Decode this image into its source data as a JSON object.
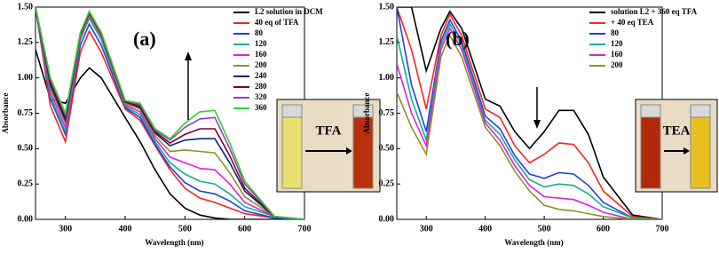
{
  "chart_data": [
    {
      "type": "line",
      "label": "(a)",
      "inset_label": "TFA",
      "x_label": "Wavelength (nm)",
      "y_label": "Absorbance",
      "x": [
        250,
        275,
        300,
        325,
        340,
        360,
        400,
        425,
        450,
        475,
        500,
        525,
        550,
        575,
        600,
        650,
        700
      ],
      "xlim": [
        250,
        700
      ],
      "xticks": [
        300,
        400,
        500,
        600,
        700
      ],
      "ylim": [
        0,
        1.5
      ],
      "yticks": [
        {
          "value": 0,
          "label": "0.00"
        },
        {
          "value": 0.25,
          "label": "0.25"
        },
        {
          "value": 0.5,
          "label": "0.50"
        },
        {
          "value": 0.75,
          "label": "0.75"
        },
        {
          "value": 1,
          "label": "1.00"
        },
        {
          "value": 1.25,
          "label": "1.25"
        },
        {
          "value": 1.5,
          "label": "1.50"
        }
      ],
      "legend": "upper right",
      "series": [
        {
          "name": "L2 solution in DCM",
          "color": "#000000",
          "values": [
            1.2,
            0.85,
            0.82,
            1.0,
            1.07,
            1.0,
            0.72,
            0.55,
            0.35,
            0.18,
            0.08,
            0.03,
            0.01,
            0,
            0,
            0,
            0
          ]
        },
        {
          "name": "40 eq of TFA",
          "color": "#ff2020",
          "values": [
            1.5,
            0.8,
            0.55,
            1.18,
            1.33,
            1.18,
            0.78,
            0.7,
            0.52,
            0.35,
            0.22,
            0.15,
            0.12,
            0.08,
            0.04,
            0.01,
            0
          ]
        },
        {
          "name": "80",
          "color": "#2040e0",
          "values": [
            1.5,
            0.85,
            0.6,
            1.23,
            1.38,
            1.23,
            0.79,
            0.72,
            0.53,
            0.37,
            0.26,
            0.2,
            0.18,
            0.13,
            0.06,
            0.01,
            0
          ]
        },
        {
          "name": "120",
          "color": "#10b090",
          "values": [
            1.5,
            0.87,
            0.62,
            1.27,
            1.42,
            1.27,
            0.8,
            0.74,
            0.55,
            0.4,
            0.32,
            0.27,
            0.25,
            0.18,
            0.09,
            0.02,
            0
          ]
        },
        {
          "name": "160",
          "color": "#e020e0",
          "values": [
            1.5,
            0.9,
            0.65,
            1.29,
            1.44,
            1.29,
            0.81,
            0.76,
            0.57,
            0.44,
            0.4,
            0.36,
            0.35,
            0.25,
            0.12,
            0.02,
            0
          ]
        },
        {
          "name": "200",
          "color": "#909020",
          "values": [
            1.5,
            0.93,
            0.68,
            1.3,
            1.45,
            1.3,
            0.82,
            0.78,
            0.59,
            0.48,
            0.49,
            0.48,
            0.47,
            0.33,
            0.16,
            0.02,
            0
          ]
        },
        {
          "name": "240",
          "color": "#102080",
          "values": [
            1.5,
            0.95,
            0.7,
            1.31,
            1.46,
            1.31,
            0.83,
            0.79,
            0.61,
            0.52,
            0.56,
            0.57,
            0.57,
            0.4,
            0.2,
            0.02,
            0
          ]
        },
        {
          "name": "280",
          "color": "#800020",
          "values": [
            1.5,
            0.97,
            0.72,
            1.31,
            1.46,
            1.31,
            0.83,
            0.8,
            0.62,
            0.54,
            0.6,
            0.64,
            0.64,
            0.45,
            0.22,
            0.02,
            0
          ]
        },
        {
          "name": "320",
          "color": "#9040c0",
          "values": [
            1.5,
            0.99,
            0.74,
            1.32,
            1.47,
            1.32,
            0.84,
            0.81,
            0.63,
            0.56,
            0.65,
            0.71,
            0.72,
            0.5,
            0.25,
            0.02,
            0
          ]
        },
        {
          "name": "360",
          "color": "#30d030",
          "values": [
            1.5,
            1.0,
            0.75,
            1.32,
            1.47,
            1.32,
            0.84,
            0.82,
            0.64,
            0.57,
            0.68,
            0.76,
            0.77,
            0.54,
            0.27,
            0.02,
            0
          ]
        }
      ]
    },
    {
      "type": "line",
      "label": "(b)",
      "inset_label": "TEA",
      "x_label": "Wavelength (nm)",
      "y_label": "Absorbance",
      "x": [
        250,
        275,
        300,
        325,
        340,
        360,
        400,
        425,
        450,
        475,
        500,
        525,
        550,
        575,
        600,
        650,
        700
      ],
      "xlim": [
        250,
        700
      ],
      "xticks": [
        300,
        400,
        500,
        600,
        700
      ],
      "ylim": [
        0,
        1.5
      ],
      "yticks": [
        {
          "value": 0,
          "label": "0.00"
        },
        {
          "value": 0.25,
          "label": "0.25"
        },
        {
          "value": 0.5,
          "label": "0.50"
        },
        {
          "value": 0.75,
          "label": "0.75"
        },
        {
          "value": 1,
          "label": "1.00"
        },
        {
          "value": 1.25,
          "label": "1.25"
        },
        {
          "value": 1.5,
          "label": "1.50"
        }
      ],
      "legend": "upper right",
      "series": [
        {
          "name": "solution L2 + 360 eq TFA",
          "color": "#000000",
          "values": [
            1.5,
            1.5,
            1.05,
            1.35,
            1.47,
            1.35,
            0.85,
            0.8,
            0.62,
            0.5,
            0.62,
            0.77,
            0.77,
            0.6,
            0.3,
            0.03,
            0
          ]
        },
        {
          "name": "+ 40 eq TEA",
          "color": "#ff2020",
          "values": [
            1.5,
            1.2,
            0.78,
            1.3,
            1.45,
            1.3,
            0.78,
            0.72,
            0.52,
            0.4,
            0.46,
            0.54,
            0.53,
            0.4,
            0.2,
            0.02,
            0
          ]
        },
        {
          "name": "80",
          "color": "#2040e0",
          "values": [
            1.5,
            0.95,
            0.62,
            1.26,
            1.41,
            1.26,
            0.73,
            0.64,
            0.45,
            0.32,
            0.29,
            0.33,
            0.32,
            0.24,
            0.12,
            0.01,
            0
          ]
        },
        {
          "name": "120",
          "color": "#10b090",
          "values": [
            1.3,
            0.85,
            0.56,
            1.23,
            1.38,
            1.23,
            0.7,
            0.6,
            0.42,
            0.28,
            0.23,
            0.25,
            0.24,
            0.18,
            0.09,
            0.01,
            0
          ]
        },
        {
          "name": "160",
          "color": "#e020e0",
          "values": [
            1.1,
            0.75,
            0.52,
            1.2,
            1.35,
            1.2,
            0.68,
            0.56,
            0.38,
            0.24,
            0.16,
            0.15,
            0.14,
            0.1,
            0.05,
            0,
            0
          ]
        },
        {
          "name": "200",
          "color": "#909020",
          "values": [
            0.9,
            0.65,
            0.46,
            1.15,
            1.3,
            1.15,
            0.65,
            0.52,
            0.34,
            0.2,
            0.1,
            0.07,
            0.06,
            0.04,
            0.02,
            0,
            0
          ]
        }
      ]
    }
  ]
}
